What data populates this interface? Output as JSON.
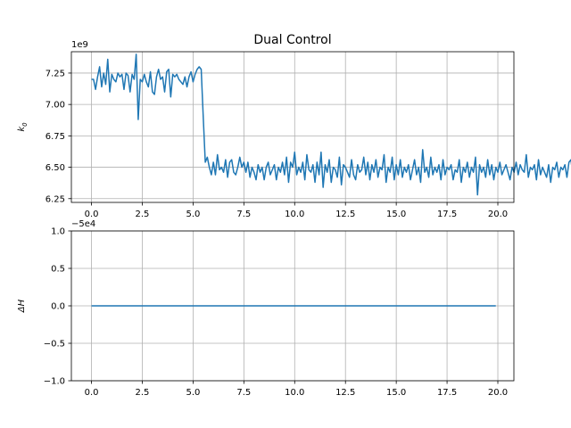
{
  "figure": {
    "title": "Dual Control"
  },
  "chart_data": [
    {
      "type": "line",
      "title": "Dual Control",
      "xlabel": "",
      "ylabel": "k_0",
      "ylabel_main": "k",
      "ylabel_sub": "0",
      "offset_text": "1e9",
      "xlim": [
        -0.99,
        20.79
      ],
      "ylim": [
        6.22,
        7.42
      ],
      "xticks": [
        0,
        2.5,
        5,
        7.5,
        10,
        12.5,
        15,
        17.5,
        20
      ],
      "xtick_labels": [
        "0.0",
        "2.5",
        "5.0",
        "7.5",
        "10.0",
        "12.5",
        "15.0",
        "17.5",
        "20.0"
      ],
      "yticks": [
        6.25,
        6.5,
        6.75,
        7.0,
        7.25
      ],
      "ytick_labels": [
        "6.25",
        "6.50",
        "6.75",
        "7.00",
        "7.25"
      ],
      "grid": true,
      "line_color": "#1f77b4",
      "x_start": 0.0,
      "x_step": 0.1,
      "values": [
        7.2,
        7.2,
        7.12,
        7.22,
        7.3,
        7.14,
        7.25,
        7.16,
        7.36,
        7.1,
        7.24,
        7.2,
        7.18,
        7.25,
        7.22,
        7.24,
        7.12,
        7.25,
        7.23,
        7.1,
        7.24,
        7.2,
        7.4,
        6.88,
        7.2,
        7.18,
        7.24,
        7.18,
        7.14,
        7.26,
        7.1,
        7.08,
        7.22,
        7.28,
        7.2,
        7.22,
        7.1,
        7.26,
        7.28,
        7.06,
        7.24,
        7.22,
        7.24,
        7.2,
        7.18,
        7.16,
        7.22,
        7.14,
        7.22,
        7.26,
        7.18,
        7.24,
        7.28,
        7.3,
        7.28,
        6.9,
        6.54,
        6.58,
        6.5,
        6.44,
        6.54,
        6.44,
        6.6,
        6.48,
        6.5,
        6.46,
        6.56,
        6.42,
        6.54,
        6.56,
        6.46,
        6.44,
        6.5,
        6.58,
        6.5,
        6.54,
        6.46,
        6.54,
        6.42,
        6.5,
        6.46,
        6.4,
        6.52,
        6.46,
        6.5,
        6.4,
        6.5,
        6.54,
        6.44,
        6.48,
        6.52,
        6.4,
        6.5,
        6.46,
        6.54,
        6.44,
        6.58,
        6.38,
        6.54,
        6.5,
        6.62,
        6.44,
        6.5,
        6.46,
        6.54,
        6.4,
        6.6,
        6.48,
        6.46,
        6.52,
        6.38,
        6.54,
        6.44,
        6.62,
        6.34,
        6.52,
        6.46,
        6.56,
        6.38,
        6.5,
        6.48,
        6.42,
        6.58,
        6.36,
        6.52,
        6.5,
        6.46,
        6.42,
        6.56,
        6.44,
        6.4,
        6.52,
        6.46,
        6.48,
        6.58,
        6.44,
        6.54,
        6.4,
        6.52,
        6.46,
        6.56,
        6.42,
        6.5,
        6.48,
        6.6,
        6.38,
        6.5,
        6.46,
        6.58,
        6.4,
        6.52,
        6.44,
        6.56,
        6.42,
        6.5,
        6.46,
        6.52,
        6.4,
        6.48,
        6.56,
        6.44,
        6.5,
        6.38,
        6.64,
        6.46,
        6.5,
        6.42,
        6.58,
        6.44,
        6.5,
        6.46,
        6.52,
        6.4,
        6.56,
        6.44,
        6.5,
        6.48,
        6.52,
        6.4,
        6.48,
        6.46,
        6.56,
        6.38,
        6.5,
        6.46,
        6.54,
        6.42,
        6.5,
        6.46,
        6.58,
        6.28,
        6.52,
        6.46,
        6.5,
        6.42,
        6.56,
        6.44,
        6.52,
        6.4,
        6.5,
        6.46,
        6.54,
        6.44,
        6.48,
        6.52,
        6.46,
        6.4,
        6.5,
        6.46,
        6.54,
        6.44,
        6.52,
        6.48,
        6.46,
        6.6,
        6.42,
        6.5,
        6.48,
        6.52,
        6.4,
        6.56,
        6.44,
        6.5,
        6.46,
        6.42,
        6.52,
        6.38,
        6.5,
        6.48,
        6.54,
        6.42,
        6.5,
        6.48,
        6.52,
        6.42,
        6.54,
        6.56,
        6.42,
        6.5,
        6.48,
        6.54,
        6.38
      ]
    },
    {
      "type": "line",
      "title": "",
      "xlabel": "",
      "ylabel": "ΔH",
      "offset_text": "−5e4",
      "xlim": [
        -0.99,
        20.79
      ],
      "ylim": [
        -1.0,
        1.0
      ],
      "xticks": [
        0,
        2.5,
        5,
        7.5,
        10,
        12.5,
        15,
        17.5,
        20
      ],
      "xtick_labels": [
        "0.0",
        "2.5",
        "5.0",
        "7.5",
        "10.0",
        "12.5",
        "15.0",
        "17.5",
        "20.0"
      ],
      "yticks": [
        -1.0,
        -0.5,
        0.0,
        0.5,
        1.0
      ],
      "ytick_labels": [
        "−1.0",
        "−0.5",
        "0.0",
        "0.5",
        "1.0"
      ],
      "grid": true,
      "line_color": "#1f77b4",
      "x": [
        0,
        19.9
      ],
      "values": [
        0,
        0
      ]
    }
  ]
}
